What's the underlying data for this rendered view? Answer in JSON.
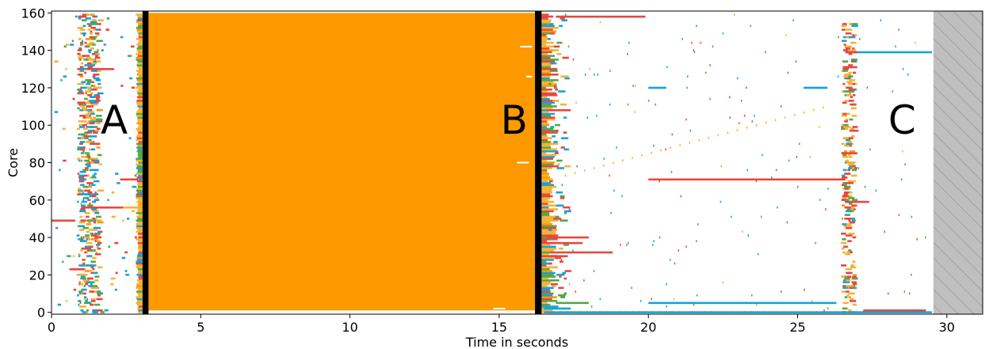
{
  "chart_data": {
    "type": "scatter",
    "title": "",
    "xlabel": "Time in seconds",
    "ylabel": "Core",
    "xlim": [
      0,
      31.2
    ],
    "ylim": [
      -1,
      161
    ],
    "x_ticks": [
      0,
      5,
      10,
      15,
      20,
      25,
      30
    ],
    "y_ticks": [
      0,
      20,
      40,
      60,
      80,
      100,
      120,
      140,
      160
    ],
    "grid": false,
    "legend": "none",
    "colors": {
      "orange": "#ff9900",
      "light_orange": "#f5b335",
      "red": "#e8473f",
      "blue": "#17a2dc",
      "green": "#52a849",
      "black": "#000000",
      "hatch_fill": "#bfbfbf",
      "hatch_line": "#8c8c8c"
    },
    "phases": [
      {
        "label": "A",
        "x": 2.1,
        "y": 103
      },
      {
        "label": "B",
        "x": 15.5,
        "y": 103
      },
      {
        "label": "C",
        "x": 28.5,
        "y": 103
      }
    ],
    "barriers": [
      {
        "x_start": 3.05,
        "x_end": 3.25,
        "y_start": 0,
        "y_end": 161
      },
      {
        "x_start": 16.2,
        "x_end": 16.42,
        "y_start": 0,
        "y_end": 161
      }
    ],
    "filled_regions": [
      {
        "x_start": 3.25,
        "x_end": 16.2,
        "y_start": 1,
        "y_end": 160,
        "color": "#ff9900"
      }
    ],
    "hatched_region": {
      "x_start": 29.55,
      "x_end": 31.2
    },
    "segments": [
      {
        "core": 158,
        "start": 16.9,
        "end": 19.9,
        "color": "red"
      },
      {
        "core": 71,
        "start": 20.0,
        "end": 26.6,
        "color": "red"
      },
      {
        "core": 108,
        "start": 16.6,
        "end": 17.4,
        "color": "red"
      },
      {
        "core": 40,
        "start": 16.6,
        "end": 18.0,
        "color": "red"
      },
      {
        "core": 37,
        "start": 16.6,
        "end": 17.8,
        "color": "red"
      },
      {
        "core": 32,
        "start": 16.7,
        "end": 18.8,
        "color": "red"
      },
      {
        "core": 30,
        "start": 16.7,
        "end": 17.3,
        "color": "red"
      },
      {
        "core": 1,
        "start": 27.2,
        "end": 29.3,
        "color": "red"
      },
      {
        "core": 5,
        "start": 20.0,
        "end": 26.3,
        "color": "blue"
      },
      {
        "core": 139,
        "start": 26.6,
        "end": 29.5,
        "color": "blue"
      },
      {
        "core": 120,
        "start": 20.0,
        "end": 20.6,
        "color": "blue"
      },
      {
        "core": 120,
        "start": 25.2,
        "end": 26.0,
        "color": "blue"
      },
      {
        "core": 5,
        "start": 16.9,
        "end": 18.0,
        "color": "green"
      },
      {
        "core": 56,
        "start": 1.0,
        "end": 2.4,
        "color": "red"
      },
      {
        "core": 130,
        "start": 1.2,
        "end": 2.1,
        "color": "red"
      },
      {
        "core": 71,
        "start": 2.3,
        "end": 2.9,
        "color": "red"
      },
      {
        "core": 49,
        "start": 0.0,
        "end": 0.8,
        "color": "red"
      },
      {
        "core": 23,
        "start": 0.6,
        "end": 1.1,
        "color": "red"
      },
      {
        "core": 56,
        "start": 2.4,
        "end": 3.0,
        "color": "light_orange"
      },
      {
        "core": 85,
        "start": 26.5,
        "end": 27.0,
        "color": "red"
      },
      {
        "core": 59,
        "start": 26.6,
        "end": 27.4,
        "color": "red"
      },
      {
        "core": 139,
        "start": 26.6,
        "end": 27.0,
        "color": "red"
      },
      {
        "core": 131,
        "start": 26.6,
        "end": 27.0,
        "color": "red"
      },
      {
        "core": 2,
        "start": 16.5,
        "end": 17.4,
        "color": "blue"
      },
      {
        "core": 0,
        "start": 16.5,
        "end": 29.5,
        "color": "blue"
      }
    ]
  }
}
